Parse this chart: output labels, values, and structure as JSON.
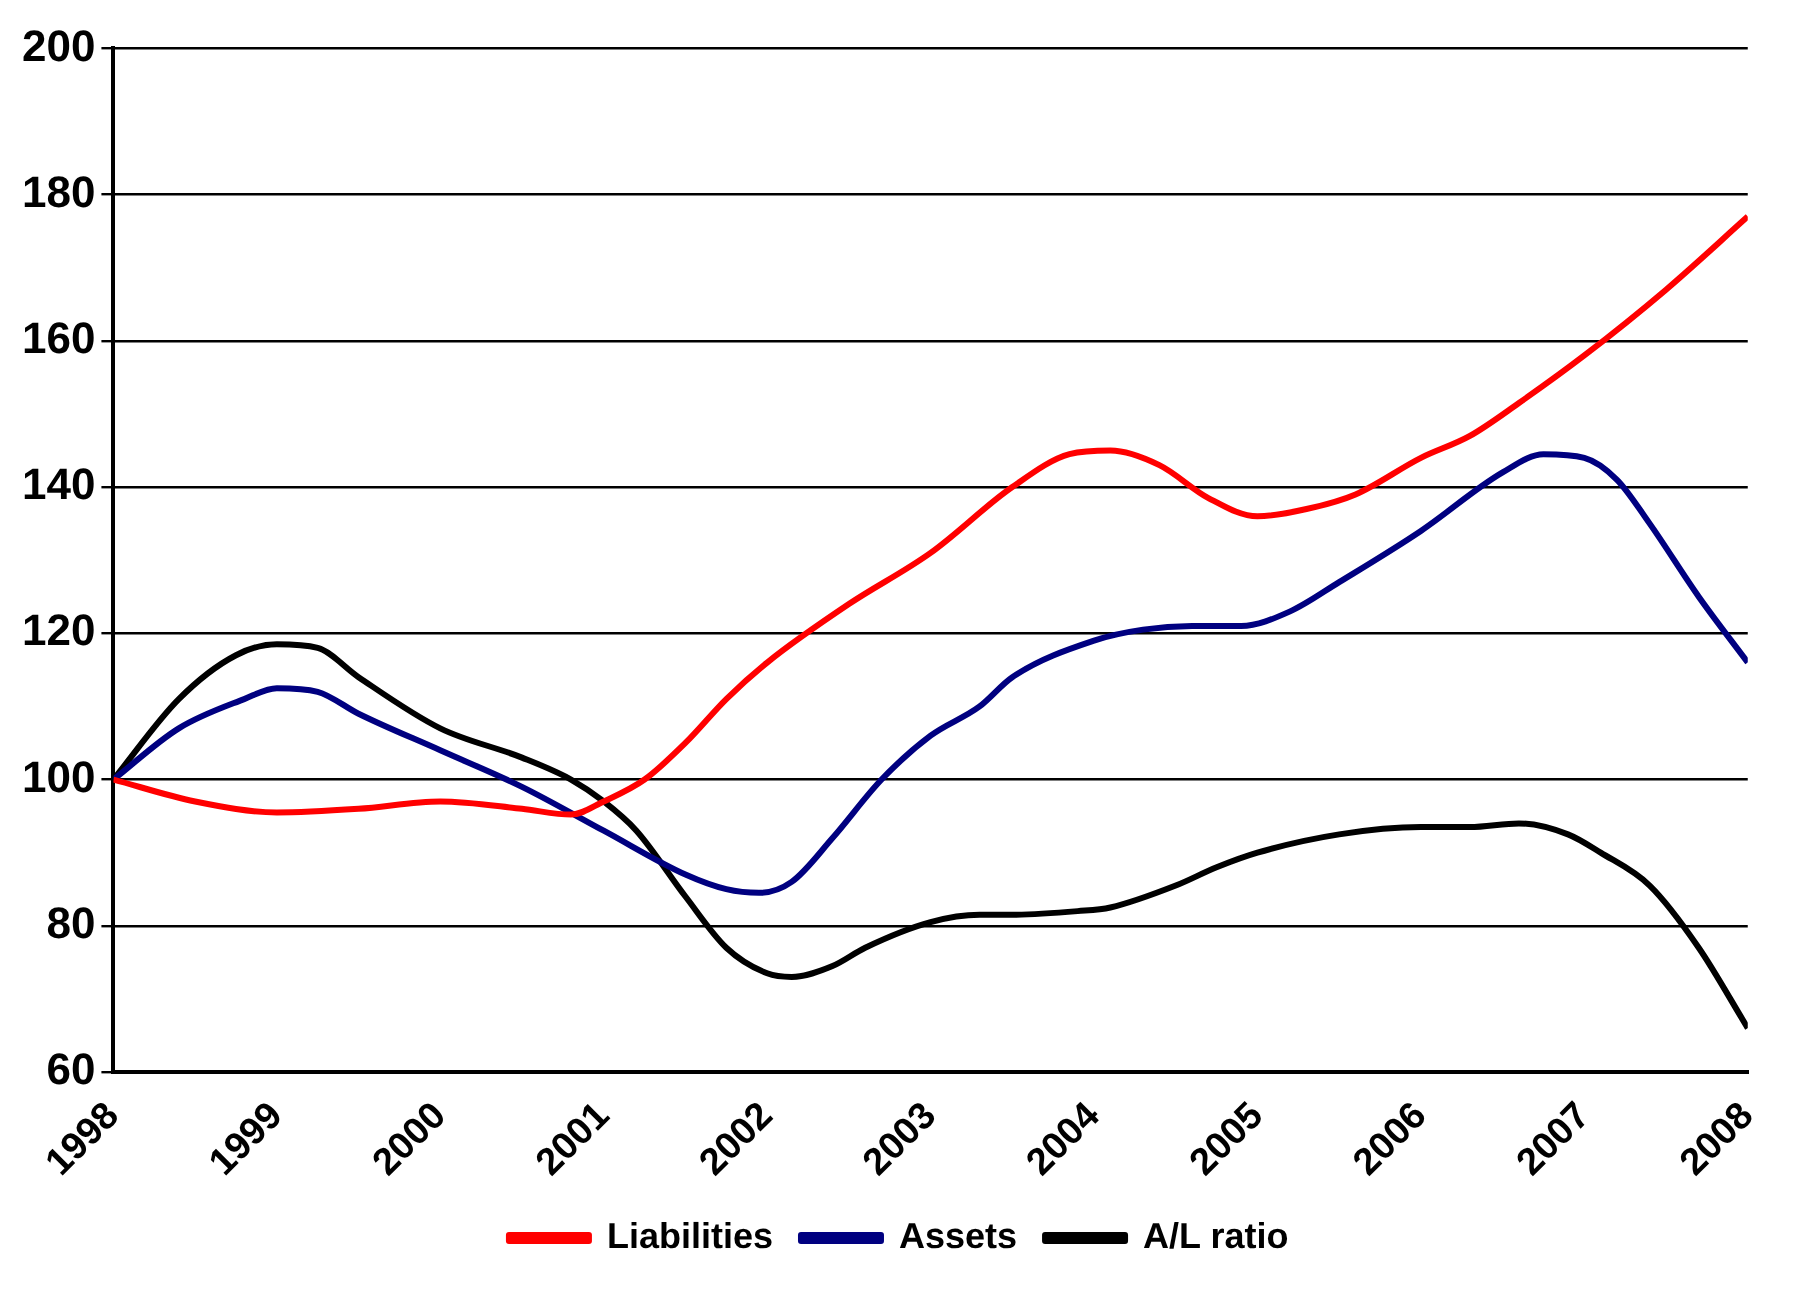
{
  "chart_data": {
    "type": "line",
    "xlim": [
      1998,
      2008
    ],
    "xticks": [
      1998,
      1999,
      2000,
      2001,
      2002,
      2003,
      2004,
      2005,
      2006,
      2007,
      2008
    ],
    "ylim": [
      60,
      200
    ],
    "yticks": [
      60,
      80,
      100,
      120,
      140,
      160,
      180,
      200
    ],
    "grid": "y",
    "legend": "bottom",
    "marker": "none",
    "line_style": "solid",
    "series": [
      {
        "name": "Liabilities",
        "color": "#ff0000",
        "x": [
          1998,
          1998.5,
          1999,
          1999.5,
          2000,
          2000.5,
          2000.8,
          2001,
          2001.25,
          2001.5,
          2001.75,
          2002,
          2002.5,
          2003,
          2003.5,
          2003.85,
          2004.1,
          2004.4,
          2004.7,
          2005,
          2005.3,
          2005.6,
          2006,
          2006.3,
          2006.6,
          2007,
          2007.5,
          2008
        ],
        "values": [
          100,
          97,
          95.5,
          96,
          97,
          96,
          95.2,
          97,
          100,
          105,
          111,
          116,
          124,
          131,
          140,
          144.5,
          145,
          143,
          138.5,
          136,
          137,
          139,
          144,
          147,
          151.5,
          158,
          167,
          177
        ]
      },
      {
        "name": "Assets",
        "color": "#000080",
        "x": [
          1998,
          1998.4,
          1998.8,
          1999,
          1999.25,
          1999.5,
          2000,
          2000.5,
          2001,
          2001.5,
          2001.75,
          2001.95,
          2002.15,
          2002.4,
          2002.7,
          2003,
          2003.3,
          2003.5,
          2004,
          2004.3,
          2004.6,
          2004.9,
          2005.2,
          2005.5,
          2006,
          2006.5,
          2006.75,
          2007,
          2007.2,
          2007.4,
          2007.7,
          2008
        ],
        "values": [
          100,
          107,
          111,
          112.5,
          112,
          109,
          104,
          99,
          93,
          87,
          85,
          84.5,
          86,
          92,
          100,
          106,
          110,
          114,
          119,
          120.5,
          121,
          121,
          123,
          127,
          134,
          142,
          144.5,
          144,
          141,
          135,
          125,
          116
        ]
      },
      {
        "name": "A/L ratio",
        "color": "#000000",
        "x": [
          1998,
          1998.4,
          1998.75,
          1999,
          1999.25,
          1999.5,
          2000,
          2000.5,
          2000.8,
          2001,
          2001.2,
          2001.5,
          2001.75,
          2002,
          2002.15,
          2002.4,
          2002.6,
          2003,
          2003.3,
          2003.5,
          2003.9,
          2004.1,
          2004.5,
          2004.75,
          2005,
          2005.5,
          2006,
          2006.3,
          2006.6,
          2006.9,
          2007.1,
          2007.4,
          2007.7,
          2008
        ],
        "values": [
          100,
          111,
          117,
          118.5,
          118,
          114,
          107,
          103,
          100,
          97,
          93,
          84,
          77,
          73.5,
          73,
          74.5,
          77,
          80.5,
          81.5,
          81.5,
          82,
          82.5,
          85.5,
          88,
          90,
          92.5,
          93.5,
          93.5,
          94,
          92.5,
          90,
          85.5,
          77,
          66
        ]
      }
    ]
  }
}
